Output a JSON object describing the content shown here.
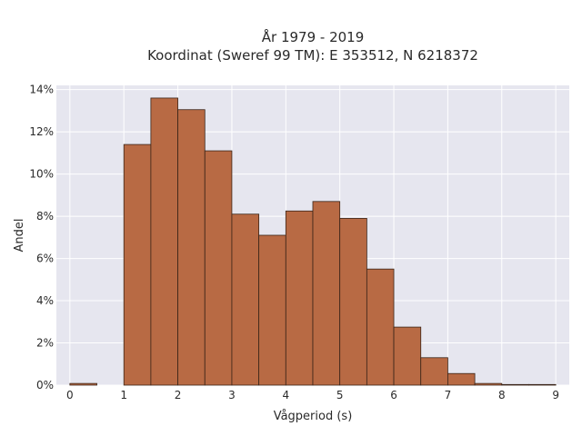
{
  "chart_data": {
    "type": "bar",
    "title_lines": [
      "År 1979 - 2019",
      "Koordinat (Sweref 99 TM): E 353512, N 6218372"
    ],
    "xlabel": "Vågperiod (s)",
    "ylabel": "Andel",
    "xlim": [
      -0.25,
      9.25
    ],
    "ylim": [
      0,
      14.2
    ],
    "x_ticks": [
      0,
      1,
      2,
      3,
      4,
      5,
      6,
      7,
      8,
      9
    ],
    "x_tick_labels": [
      "0",
      "1",
      "2",
      "3",
      "4",
      "5",
      "6",
      "7",
      "8",
      "9"
    ],
    "y_ticks": [
      0,
      2,
      4,
      6,
      8,
      10,
      12,
      14
    ],
    "y_tick_labels": [
      "0%",
      "2%",
      "4%",
      "6%",
      "8%",
      "10%",
      "12%",
      "14%"
    ],
    "bin_width": 0.5,
    "bin_starts": [
      0,
      0.5,
      1,
      1.5,
      2,
      2.5,
      3,
      3.5,
      4,
      4.5,
      5,
      5.5,
      6,
      6.5,
      7,
      7.5,
      8,
      8.5
    ],
    "values": [
      0.08,
      0,
      11.4,
      13.6,
      13.05,
      11.1,
      8.1,
      7.1,
      8.25,
      8.7,
      7.9,
      5.5,
      2.75,
      1.3,
      0.55,
      0.08,
      0.03,
      0.03
    ],
    "bar_color": "#b86a44",
    "bar_edge_color": "#3a2418",
    "background_color": "#e6e6ef",
    "grid": true,
    "grid_color": "#ffffff"
  }
}
